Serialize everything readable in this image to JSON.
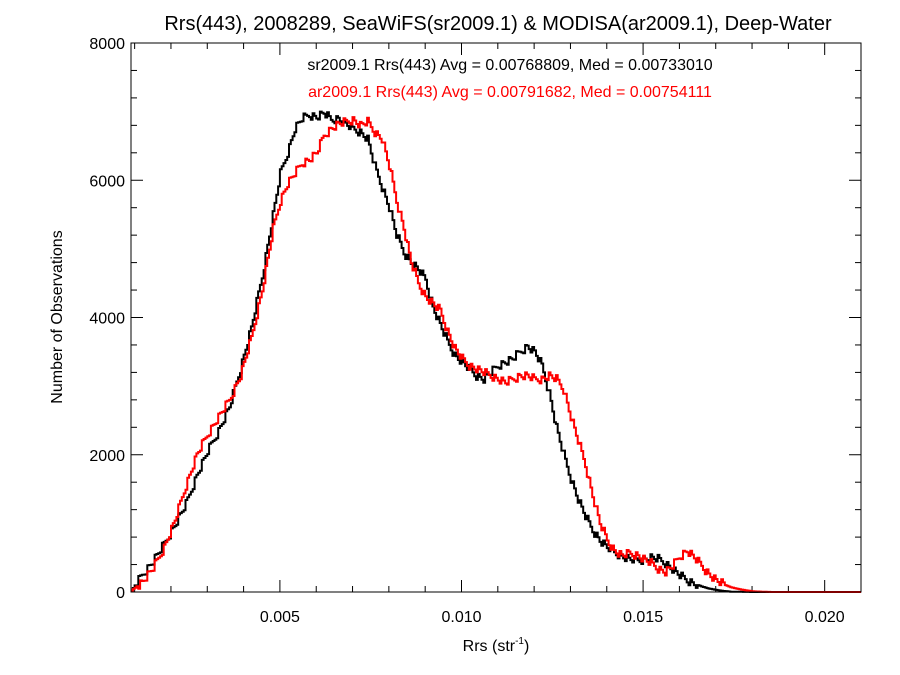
{
  "chart_data": {
    "type": "line",
    "title": "Rrs(443), 2008289, SeaWiFS(sr2009.1) & MODISA(ar2009.1), Deep-Water",
    "xlabel_main": "Rrs (str",
    "xlabel_sup": "-1",
    "xlabel_close": ")",
    "ylabel": "Number of Observations",
    "xlim": [
      0.0009,
      0.021
    ],
    "ylim": [
      0,
      8000
    ],
    "x_ticks": [
      0.005,
      0.01,
      0.015,
      0.02
    ],
    "x_tick_labels": [
      "0.005",
      "0.010",
      "0.015",
      "0.020"
    ],
    "y_ticks": [
      0,
      2000,
      4000,
      6000,
      8000
    ],
    "y_tick_labels": [
      "0",
      "2000",
      "4000",
      "6000",
      "8000"
    ],
    "grid": false,
    "annotations": [
      {
        "text": "sr2009.1 Rrs(443) Avg = 0.00768809, Med = 0.00733010",
        "color": "#000000"
      },
      {
        "text": "ar2009.1 Rrs(443) Avg = 0.00791682, Med = 0.00754111",
        "color": "#ff0000"
      }
    ],
    "series": [
      {
        "color": "#000000",
        "points": [
          [
            0.0009,
            20
          ],
          [
            0.0012,
            250
          ],
          [
            0.0015,
            450
          ],
          [
            0.0018,
            700
          ],
          [
            0.0021,
            980
          ],
          [
            0.0024,
            1280
          ],
          [
            0.0027,
            1700
          ],
          [
            0.003,
            2050
          ],
          [
            0.0033,
            2350
          ],
          [
            0.0036,
            2700
          ],
          [
            0.0039,
            3250
          ],
          [
            0.0042,
            3850
          ],
          [
            0.0045,
            4600
          ],
          [
            0.0048,
            5500
          ],
          [
            0.005,
            6100
          ],
          [
            0.0052,
            6400
          ],
          [
            0.0054,
            6750
          ],
          [
            0.0056,
            6900
          ],
          [
            0.0058,
            6950
          ],
          [
            0.006,
            6920
          ],
          [
            0.0062,
            6980
          ],
          [
            0.0064,
            6880
          ],
          [
            0.0066,
            6900
          ],
          [
            0.0068,
            6820
          ],
          [
            0.007,
            6750
          ],
          [
            0.0072,
            6700
          ],
          [
            0.0074,
            6600
          ],
          [
            0.0076,
            6200
          ],
          [
            0.0078,
            5900
          ],
          [
            0.008,
            5600
          ],
          [
            0.0082,
            5200
          ],
          [
            0.0084,
            4950
          ],
          [
            0.0086,
            4800
          ],
          [
            0.0088,
            4700
          ],
          [
            0.009,
            4550
          ],
          [
            0.0092,
            4150
          ],
          [
            0.0094,
            3900
          ],
          [
            0.0096,
            3650
          ],
          [
            0.0098,
            3450
          ],
          [
            0.01,
            3350
          ],
          [
            0.0102,
            3250
          ],
          [
            0.0104,
            3150
          ],
          [
            0.0106,
            3100
          ],
          [
            0.0108,
            3200
          ],
          [
            0.011,
            3300
          ],
          [
            0.0112,
            3350
          ],
          [
            0.0114,
            3400
          ],
          [
            0.0116,
            3500
          ],
          [
            0.0118,
            3580
          ],
          [
            0.012,
            3500
          ],
          [
            0.0122,
            3300
          ],
          [
            0.0124,
            2900
          ],
          [
            0.0126,
            2400
          ],
          [
            0.0128,
            2000
          ],
          [
            0.013,
            1650
          ],
          [
            0.0132,
            1350
          ],
          [
            0.0134,
            1100
          ],
          [
            0.0136,
            900
          ],
          [
            0.0138,
            750
          ],
          [
            0.014,
            650
          ],
          [
            0.0142,
            580
          ],
          [
            0.0144,
            520
          ],
          [
            0.0146,
            480
          ],
          [
            0.0148,
            460
          ],
          [
            0.015,
            470
          ],
          [
            0.0152,
            500
          ],
          [
            0.0154,
            480
          ],
          [
            0.0156,
            420
          ],
          [
            0.0158,
            330
          ],
          [
            0.016,
            240
          ],
          [
            0.0162,
            170
          ],
          [
            0.0164,
            120
          ],
          [
            0.0166,
            80
          ],
          [
            0.0168,
            50
          ],
          [
            0.017,
            30
          ],
          [
            0.0172,
            15
          ],
          [
            0.0174,
            5
          ],
          [
            0.018,
            0
          ],
          [
            0.021,
            0
          ]
        ]
      },
      {
        "color": "#ff0000",
        "points": [
          [
            0.0009,
            20
          ],
          [
            0.0012,
            150
          ],
          [
            0.0015,
            350
          ],
          [
            0.0018,
            650
          ],
          [
            0.0021,
            1050
          ],
          [
            0.0024,
            1550
          ],
          [
            0.0027,
            2000
          ],
          [
            0.003,
            2300
          ],
          [
            0.0033,
            2550
          ],
          [
            0.0036,
            2800
          ],
          [
            0.0039,
            3150
          ],
          [
            0.0042,
            3700
          ],
          [
            0.0045,
            4400
          ],
          [
            0.0048,
            5300
          ],
          [
            0.005,
            5700
          ],
          [
            0.0052,
            5950
          ],
          [
            0.0054,
            6100
          ],
          [
            0.0056,
            6250
          ],
          [
            0.0058,
            6300
          ],
          [
            0.006,
            6400
          ],
          [
            0.0062,
            6650
          ],
          [
            0.0064,
            6750
          ],
          [
            0.0066,
            6820
          ],
          [
            0.0068,
            6850
          ],
          [
            0.007,
            6880
          ],
          [
            0.0072,
            6800
          ],
          [
            0.0074,
            6850
          ],
          [
            0.0076,
            6700
          ],
          [
            0.0078,
            6600
          ],
          [
            0.008,
            6200
          ],
          [
            0.0082,
            5700
          ],
          [
            0.0084,
            5300
          ],
          [
            0.0086,
            4800
          ],
          [
            0.0088,
            4500
          ],
          [
            0.009,
            4300
          ],
          [
            0.0092,
            4200
          ],
          [
            0.0094,
            4100
          ],
          [
            0.0096,
            3800
          ],
          [
            0.0098,
            3550
          ],
          [
            0.01,
            3400
          ],
          [
            0.0102,
            3300
          ],
          [
            0.0104,
            3250
          ],
          [
            0.0106,
            3200
          ],
          [
            0.0108,
            3150
          ],
          [
            0.011,
            3100
          ],
          [
            0.0112,
            3050
          ],
          [
            0.0114,
            3100
          ],
          [
            0.0116,
            3150
          ],
          [
            0.0118,
            3150
          ],
          [
            0.012,
            3100
          ],
          [
            0.0122,
            3100
          ],
          [
            0.0124,
            3150
          ],
          [
            0.0126,
            3100
          ],
          [
            0.0128,
            2950
          ],
          [
            0.013,
            2550
          ],
          [
            0.0132,
            2200
          ],
          [
            0.0134,
            1850
          ],
          [
            0.0136,
            1400
          ],
          [
            0.0138,
            1000
          ],
          [
            0.014,
            750
          ],
          [
            0.0142,
            600
          ],
          [
            0.0144,
            530
          ],
          [
            0.0146,
            560
          ],
          [
            0.0148,
            540
          ],
          [
            0.015,
            480
          ],
          [
            0.0152,
            420
          ],
          [
            0.0154,
            340
          ],
          [
            0.0156,
            290
          ],
          [
            0.0158,
            380
          ],
          [
            0.016,
            520
          ],
          [
            0.0162,
            600
          ],
          [
            0.0164,
            500
          ],
          [
            0.0166,
            380
          ],
          [
            0.0168,
            260
          ],
          [
            0.017,
            170
          ],
          [
            0.0172,
            110
          ],
          [
            0.0174,
            70
          ],
          [
            0.0176,
            45
          ],
          [
            0.0178,
            25
          ],
          [
            0.018,
            10
          ],
          [
            0.0185,
            0
          ],
          [
            0.021,
            0
          ]
        ]
      }
    ]
  }
}
